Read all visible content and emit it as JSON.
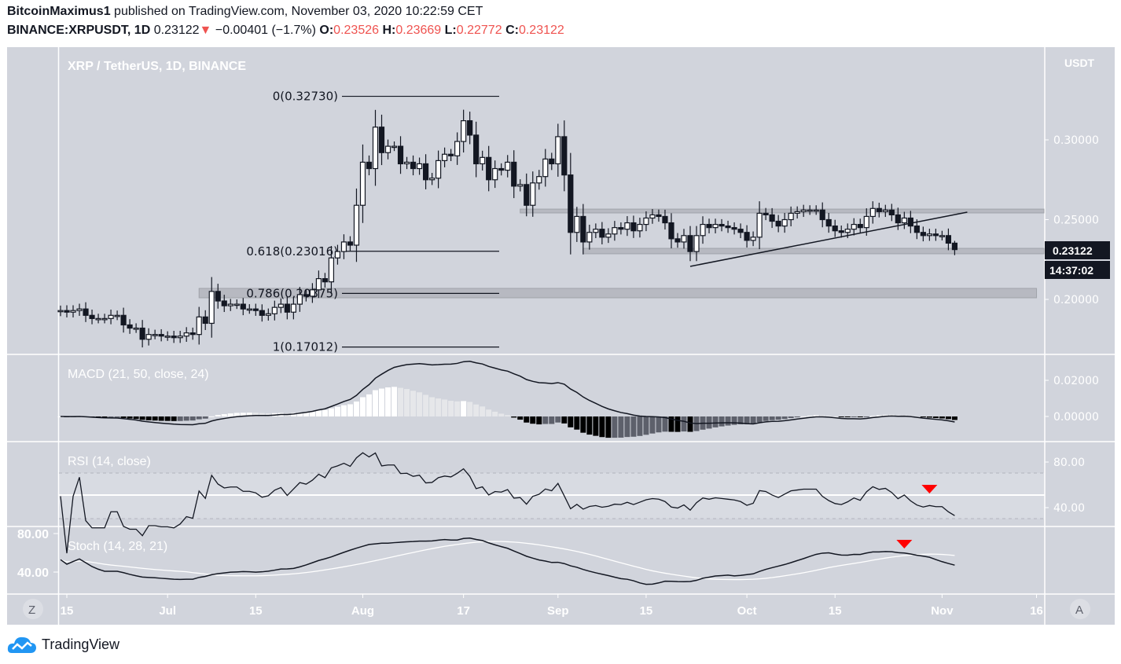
{
  "header": {
    "author": "BitcoinMaximus1",
    "published": " published on TradingView.com, November 03, 2020 10:22:59 CET",
    "symbol": "BINANCE:XRPUSDT, 1D",
    "last": "0.23122",
    "change": "−0.00401 (−1.7%)",
    "o_label": "O:",
    "o": "0.23526",
    "h_label": "H:",
    "h": "0.23669",
    "l_label": "L:",
    "l": "0.22772",
    "c_label": "C:",
    "c": "0.23122",
    "down_icon": "triangle-down-icon"
  },
  "colors": {
    "background": "#d1d4dc",
    "up": "#ffffff",
    "down": "#131722",
    "red": "#ff0000",
    "text": "#ffffff"
  },
  "chart_data": {
    "type": "candlestick",
    "title": "XRP / TetherUS, 1D, BINANCE",
    "currency": "USDT",
    "start_date": "2020-06-14",
    "closes": [
      0.193,
      0.192,
      0.193,
      0.194,
      0.19,
      0.188,
      0.188,
      0.188,
      0.19,
      0.19,
      0.184,
      0.182,
      0.182,
      0.175,
      0.178,
      0.178,
      0.177,
      0.177,
      0.176,
      0.177,
      0.179,
      0.178,
      0.189,
      0.185,
      0.205,
      0.199,
      0.196,
      0.197,
      0.197,
      0.194,
      0.194,
      0.193,
      0.19,
      0.191,
      0.195,
      0.197,
      0.192,
      0.197,
      0.203,
      0.202,
      0.206,
      0.213,
      0.211,
      0.226,
      0.23,
      0.236,
      0.234,
      0.259,
      0.286,
      0.282,
      0.308,
      0.292,
      0.296,
      0.296,
      0.285,
      0.286,
      0.282,
      0.285,
      0.275,
      0.276,
      0.287,
      0.291,
      0.29,
      0.299,
      0.312,
      0.303,
      0.285,
      0.289,
      0.275,
      0.282,
      0.281,
      0.286,
      0.271,
      0.272,
      0.259,
      0.273,
      0.277,
      0.288,
      0.285,
      0.302,
      0.278,
      0.242,
      0.252,
      0.236,
      0.242,
      0.244,
      0.239,
      0.241,
      0.245,
      0.244,
      0.248,
      0.243,
      0.247,
      0.251,
      0.253,
      0.252,
      0.248,
      0.238,
      0.236,
      0.24,
      0.23,
      0.24,
      0.247,
      0.245,
      0.247,
      0.246,
      0.245,
      0.244,
      0.242,
      0.237,
      0.239,
      0.254,
      0.253,
      0.249,
      0.246,
      0.25,
      0.254,
      0.255,
      0.256,
      0.256,
      0.256,
      0.25,
      0.246,
      0.243,
      0.242,
      0.244,
      0.247,
      0.245,
      0.252,
      0.257,
      0.255,
      0.256,
      0.253,
      0.248,
      0.251,
      0.246,
      0.242,
      0.24,
      0.241,
      0.24,
      0.24,
      0.23526,
      0.23122
    ],
    "last_candle": {
      "o": 0.23526,
      "h": 0.23669,
      "l": 0.22772,
      "c": 0.23122
    },
    "price_axis": {
      "ticks": [
        "0.30000",
        "0.25000",
        "0.20000"
      ],
      "values": [
        0.3,
        0.25,
        0.2
      ]
    },
    "last_price_label": "0.23122",
    "countdown": "14:37:02",
    "time_axis": {
      "labels": [
        "15",
        "Jul",
        "15",
        "Aug",
        "17",
        "Sep",
        "15",
        "Oct",
        "15",
        "Nov",
        "16"
      ],
      "dates": [
        "2020-06-15",
        "2020-07-01",
        "2020-07-15",
        "2020-08-01",
        "2020-08-17",
        "2020-09-01",
        "2020-09-15",
        "2020-10-01",
        "2020-10-15",
        "2020-11-01",
        "2020-11-16"
      ]
    },
    "fibonacci": [
      {
        "label": "0(0.32730)",
        "price": 0.3273
      },
      {
        "label": "0.618(0.23016)",
        "price": 0.23016
      },
      {
        "label": "0.786(0.20375)",
        "price": 0.20375
      },
      {
        "label": "1(0.17012)",
        "price": 0.17012
      }
    ],
    "zones": [
      {
        "from": "2020-08-26",
        "top": 0.2566,
        "bottom": 0.2542
      },
      {
        "from": "2020-09-05",
        "top": 0.232,
        "bottom": 0.2286
      },
      {
        "from": "2020-07-06",
        "to": "2020-11-16",
        "top": 0.2069,
        "bottom": 0.201
      }
    ],
    "trendline": {
      "from": {
        "date": "2020-09-22",
        "price": 0.2207
      },
      "to": {
        "date": "2020-11-05",
        "price": 0.2547
      }
    },
    "macd": {
      "label": "MACD (21, 50, close, 24)",
      "fast": 21,
      "slow": 50,
      "signal": 24,
      "ticks": [
        "0.02000",
        "0.00000"
      ],
      "tick_values": [
        0.02,
        0
      ]
    },
    "rsi": {
      "label": "RSI (14, close)",
      "length": 14,
      "ticks": [
        "80.00",
        "40.00"
      ],
      "tick_values": [
        80,
        40
      ],
      "bands": [
        70,
        50,
        30
      ],
      "marker_date": "2020-10-30"
    },
    "stoch": {
      "label": "Stoch (14, 28, 21)",
      "k": 14,
      "smooth_k": 28,
      "d": 21,
      "ticks": [
        "80.00",
        "40.00"
      ],
      "tick_values": [
        80,
        40
      ],
      "marker_date": "2020-10-26"
    }
  },
  "controls": {
    "zoom_btn": "Z",
    "auto_btn": "A"
  },
  "footer": {
    "brand": "TradingView"
  }
}
